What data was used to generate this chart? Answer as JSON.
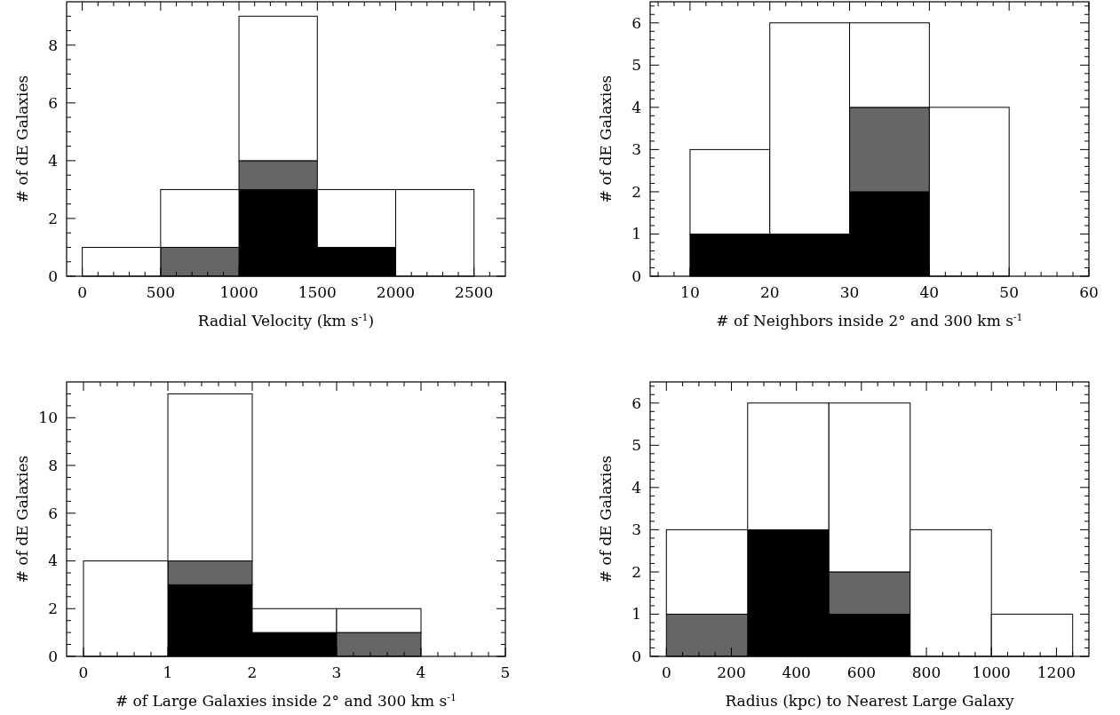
{
  "chart_data": [
    {
      "type": "bar",
      "xlabel": "Radial Velocity (km s$^{-1}$)",
      "ylabel": "# of dE Galaxies",
      "x": [
        250,
        750,
        1250,
        1750,
        2250
      ],
      "stacked": true,
      "series": [
        {
          "color": "#000000",
          "values": [
            0,
            0,
            3,
            1,
            0
          ]
        },
        {
          "color": "#666666",
          "values": [
            0,
            1,
            1,
            0,
            0
          ]
        },
        {
          "color": "#ffffff",
          "values": [
            1,
            2,
            5,
            2,
            3
          ]
        }
      ],
      "xlim": [
        -100,
        2700
      ],
      "ylim": [
        0,
        9.5
      ],
      "xticks": [
        0,
        500,
        1000,
        1500,
        2000,
        2500,
        {
          "value": 100,
          "label": null
        },
        {
          "value": 200,
          "label": null
        },
        {
          "value": 300,
          "label": null
        },
        {
          "value": 400,
          "label": null
        },
        {
          "value": 600,
          "label": null
        },
        {
          "value": 700,
          "label": null
        },
        {
          "value": 800,
          "label": null
        },
        {
          "value": 900,
          "label": null
        },
        {
          "value": 1100,
          "label": null
        },
        {
          "value": 1200,
          "label": null
        },
        {
          "value": 1300,
          "label": null
        },
        {
          "value": 1400,
          "label": null
        },
        {
          "value": 1600,
          "label": null
        },
        {
          "value": 1700,
          "label": null
        },
        {
          "value": 1800,
          "label": null
        },
        {
          "value": 1900,
          "label": null
        },
        {
          "value": 2100,
          "label": null
        },
        {
          "value": 2200,
          "label": null
        },
        {
          "value": 2300,
          "label": null
        },
        {
          "value": 2400,
          "label": null
        },
        {
          "value": 2600,
          "label": null
        }
      ],
      "yticks": [
        0,
        2,
        4,
        6,
        8,
        {
          "value": 0.5,
          "label": null
        },
        {
          "value": 1,
          "label": null
        },
        {
          "value": 1.5,
          "label": null
        },
        {
          "value": 2.5,
          "label": null
        },
        {
          "value": 3,
          "label": null
        },
        {
          "value": 3.5,
          "label": null
        },
        {
          "value": 4.5,
          "label": null
        },
        {
          "value": 5,
          "label": null
        },
        {
          "value": 5.5,
          "label": null
        },
        {
          "value": 6.5,
          "label": null
        },
        {
          "value": 7,
          "label": null
        },
        {
          "value": 7.5,
          "label": null
        },
        {
          "value": 8.5,
          "label": null
        },
        {
          "value": 9,
          "label": null
        }
      ]
    },
    {
      "type": "bar",
      "xlabel": "# of Neighbors inside 2° and 300 km s$^{-1}$",
      "ylabel": "# of dE Galaxies",
      "x": [
        15,
        25,
        35,
        45
      ],
      "stacked": true,
      "series": [
        {
          "color": "#000000",
          "values": [
            1,
            1,
            2,
            0
          ]
        },
        {
          "color": "#666666",
          "values": [
            0,
            0,
            2,
            0
          ]
        },
        {
          "color": "#ffffff",
          "values": [
            2,
            5,
            2,
            4
          ]
        }
      ],
      "xlim": [
        5,
        60
      ],
      "ylim": [
        0,
        6.5
      ],
      "xticks": [
        10,
        20,
        30,
        40,
        50,
        60,
        {
          "value": 6,
          "label": null
        },
        {
          "value": 8,
          "label": null
        },
        {
          "value": 12,
          "label": null
        },
        {
          "value": 14,
          "label": null
        },
        {
          "value": 16,
          "label": null
        },
        {
          "value": 18,
          "label": null
        },
        {
          "value": 22,
          "label": null
        },
        {
          "value": 24,
          "label": null
        },
        {
          "value": 26,
          "label": null
        },
        {
          "value": 28,
          "label": null
        },
        {
          "value": 32,
          "label": null
        },
        {
          "value": 34,
          "label": null
        },
        {
          "value": 36,
          "label": null
        },
        {
          "value": 38,
          "label": null
        },
        {
          "value": 42,
          "label": null
        },
        {
          "value": 44,
          "label": null
        },
        {
          "value": 46,
          "label": null
        },
        {
          "value": 48,
          "label": null
        },
        {
          "value": 52,
          "label": null
        },
        {
          "value": 54,
          "label": null
        },
        {
          "value": 56,
          "label": null
        },
        {
          "value": 58,
          "label": null
        }
      ],
      "yticks": [
        0,
        1,
        2,
        3,
        4,
        5,
        6,
        {
          "value": 0.2,
          "label": null
        },
        {
          "value": 0.4,
          "label": null
        },
        {
          "value": 0.6,
          "label": null
        },
        {
          "value": 0.8,
          "label": null
        },
        {
          "value": 1.2,
          "label": null
        },
        {
          "value": 1.4,
          "label": null
        },
        {
          "value": 1.6,
          "label": null
        },
        {
          "value": 1.8,
          "label": null
        },
        {
          "value": 2.2,
          "label": null
        },
        {
          "value": 2.4,
          "label": null
        },
        {
          "value": 2.6,
          "label": null
        },
        {
          "value": 2.8,
          "label": null
        },
        {
          "value": 3.2,
          "label": null
        },
        {
          "value": 3.4,
          "label": null
        },
        {
          "value": 3.6,
          "label": null
        },
        {
          "value": 3.8,
          "label": null
        },
        {
          "value": 4.2,
          "label": null
        },
        {
          "value": 4.4,
          "label": null
        },
        {
          "value": 4.6,
          "label": null
        },
        {
          "value": 4.8,
          "label": null
        },
        {
          "value": 5.2,
          "label": null
        },
        {
          "value": 5.4,
          "label": null
        },
        {
          "value": 5.6,
          "label": null
        },
        {
          "value": 5.8,
          "label": null
        },
        {
          "value": 6.2,
          "label": null
        },
        {
          "value": 6.4,
          "label": null
        }
      ]
    },
    {
      "type": "bar",
      "xlabel": "# of Large Galaxies inside 2° and 300 km s$^{-1}$",
      "ylabel": "# of dE Galaxies",
      "x": [
        0.5,
        1.5,
        2.5,
        3.5
      ],
      "stacked": true,
      "series": [
        {
          "color": "#000000",
          "values": [
            0,
            3,
            1,
            0
          ]
        },
        {
          "color": "#666666",
          "values": [
            0,
            1,
            0,
            1
          ]
        },
        {
          "color": "#ffffff",
          "values": [
            4,
            7,
            1,
            1
          ]
        }
      ],
      "xlim": [
        -0.2,
        5
      ],
      "ylim": [
        0,
        11.5
      ],
      "xticks": [
        0,
        1,
        2,
        3,
        4,
        5,
        {
          "value": 0.2,
          "label": null
        },
        {
          "value": 0.4,
          "label": null
        },
        {
          "value": 0.6,
          "label": null
        },
        {
          "value": 0.8,
          "label": null
        },
        {
          "value": 1.2,
          "label": null
        },
        {
          "value": 1.4,
          "label": null
        },
        {
          "value": 1.6,
          "label": null
        },
        {
          "value": 1.8,
          "label": null
        },
        {
          "value": 2.2,
          "label": null
        },
        {
          "value": 2.4,
          "label": null
        },
        {
          "value": 2.6,
          "label": null
        },
        {
          "value": 2.8,
          "label": null
        },
        {
          "value": 3.2,
          "label": null
        },
        {
          "value": 3.4,
          "label": null
        },
        {
          "value": 3.6,
          "label": null
        },
        {
          "value": 3.8,
          "label": null
        },
        {
          "value": 4.2,
          "label": null
        },
        {
          "value": 4.4,
          "label": null
        },
        {
          "value": 4.6,
          "label": null
        },
        {
          "value": 4.8,
          "label": null
        }
      ],
      "yticks": [
        0,
        2,
        4,
        6,
        8,
        10,
        {
          "value": 0.5,
          "label": null
        },
        {
          "value": 1,
          "label": null
        },
        {
          "value": 1.5,
          "label": null
        },
        {
          "value": 2.5,
          "label": null
        },
        {
          "value": 3,
          "label": null
        },
        {
          "value": 3.5,
          "label": null
        },
        {
          "value": 4.5,
          "label": null
        },
        {
          "value": 5,
          "label": null
        },
        {
          "value": 5.5,
          "label": null
        },
        {
          "value": 6.5,
          "label": null
        },
        {
          "value": 7,
          "label": null
        },
        {
          "value": 7.5,
          "label": null
        },
        {
          "value": 8.5,
          "label": null
        },
        {
          "value": 9,
          "label": null
        },
        {
          "value": 9.5,
          "label": null
        },
        {
          "value": 10.5,
          "label": null
        },
        {
          "value": 11,
          "label": null
        }
      ]
    },
    {
      "type": "bar",
      "xlabel": "Radius (kpc) to Nearest Large Galaxy",
      "ylabel": "# of dE Galaxies",
      "x": [
        125,
        375,
        625,
        875,
        1125
      ],
      "stacked": true,
      "series": [
        {
          "color": "#000000",
          "values": [
            0,
            3,
            1,
            0,
            0
          ]
        },
        {
          "color": "#666666",
          "values": [
            1,
            0,
            1,
            0,
            0
          ]
        },
        {
          "color": "#ffffff",
          "values": [
            2,
            3,
            4,
            3,
            1
          ]
        }
      ],
      "xlim": [
        -50,
        1300
      ],
      "ylim": [
        0,
        6.5
      ],
      "xticks": [
        0,
        200,
        400,
        600,
        800,
        1000,
        1200,
        {
          "value": 50,
          "label": null
        },
        {
          "value": 100,
          "label": null
        },
        {
          "value": 150,
          "label": null
        },
        {
          "value": 250,
          "label": null
        },
        {
          "value": 300,
          "label": null
        },
        {
          "value": 350,
          "label": null
        },
        {
          "value": 450,
          "label": null
        },
        {
          "value": 500,
          "label": null
        },
        {
          "value": 550,
          "label": null
        },
        {
          "value": 650,
          "label": null
        },
        {
          "value": 700,
          "label": null
        },
        {
          "value": 750,
          "label": null
        },
        {
          "value": 850,
          "label": null
        },
        {
          "value": 900,
          "label": null
        },
        {
          "value": 950,
          "label": null
        },
        {
          "value": 1050,
          "label": null
        },
        {
          "value": 1100,
          "label": null
        },
        {
          "value": 1150,
          "label": null
        },
        {
          "value": 1250,
          "label": null
        }
      ],
      "yticks": [
        0,
        1,
        2,
        3,
        4,
        5,
        6,
        {
          "value": 0.2,
          "label": null
        },
        {
          "value": 0.4,
          "label": null
        },
        {
          "value": 0.6,
          "label": null
        },
        {
          "value": 0.8,
          "label": null
        },
        {
          "value": 1.2,
          "label": null
        },
        {
          "value": 1.4,
          "label": null
        },
        {
          "value": 1.6,
          "label": null
        },
        {
          "value": 1.8,
          "label": null
        },
        {
          "value": 2.2,
          "label": null
        },
        {
          "value": 2.4,
          "label": null
        },
        {
          "value": 2.6,
          "label": null
        },
        {
          "value": 2.8,
          "label": null
        },
        {
          "value": 3.2,
          "label": null
        },
        {
          "value": 3.4,
          "label": null
        },
        {
          "value": 3.6,
          "label": null
        },
        {
          "value": 3.8,
          "label": null
        },
        {
          "value": 4.2,
          "label": null
        },
        {
          "value": 4.4,
          "label": null
        },
        {
          "value": 4.6,
          "label": null
        },
        {
          "value": 4.8,
          "label": null
        },
        {
          "value": 5.2,
          "label": null
        },
        {
          "value": 5.4,
          "label": null
        },
        {
          "value": 5.6,
          "label": null
        },
        {
          "value": 5.8,
          "label": null
        },
        {
          "value": 6.2,
          "label": null
        },
        {
          "value": 6.4,
          "label": null
        }
      ]
    }
  ]
}
